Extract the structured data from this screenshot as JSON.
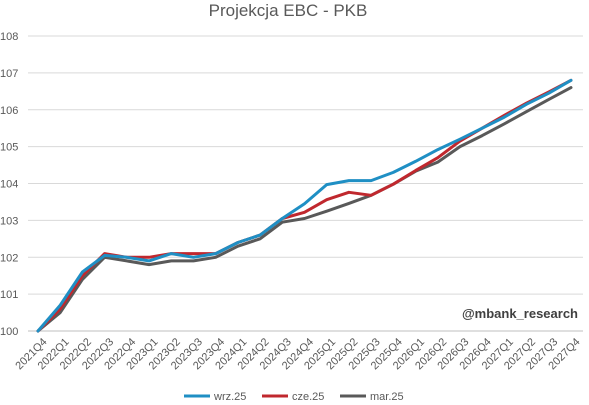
{
  "chart_data": {
    "type": "line",
    "title": "Projekcja EBC - PKB",
    "watermark": "@mbank_research",
    "ylim": [
      100,
      108
    ],
    "yticks": [
      100,
      101,
      102,
      103,
      104,
      105,
      106,
      107,
      108
    ],
    "grid": true,
    "legend_position": "bottom",
    "categories": [
      "2021Q4",
      "2022Q1",
      "2022Q2",
      "2022Q3",
      "2022Q4",
      "2023Q1",
      "2023Q2",
      "2023Q3",
      "2023Q4",
      "2024Q1",
      "2024Q2",
      "2024Q3",
      "2024Q4",
      "2025Q1",
      "2025Q2",
      "2025Q3",
      "2025Q4",
      "2026Q1",
      "2026Q2",
      "2026Q3",
      "2026Q4",
      "2027Q1",
      "2027Q2",
      "2027Q3",
      "2027Q4"
    ],
    "series": [
      {
        "name": "wrz.25",
        "color": "#1f8fc4",
        "values": [
          100.0,
          100.7,
          101.6,
          102.05,
          102.0,
          101.9,
          102.1,
          102.0,
          102.1,
          102.4,
          102.6,
          103.05,
          103.45,
          103.97,
          104.08,
          104.08,
          104.3,
          104.6,
          104.92,
          105.2,
          105.5,
          105.8,
          106.15,
          106.45,
          106.8
        ]
      },
      {
        "name": "cze.25",
        "color": "#c0282e",
        "values": [
          100.0,
          100.6,
          101.5,
          102.1,
          102.0,
          102.0,
          102.1,
          102.1,
          102.1,
          102.4,
          102.6,
          103.05,
          103.22,
          103.56,
          103.76,
          103.68,
          103.98,
          104.35,
          104.7,
          105.15,
          105.5,
          105.85,
          106.18,
          106.48,
          106.8
        ]
      },
      {
        "name": "mar.25",
        "color": "#595959",
        "values": [
          100.0,
          100.5,
          101.4,
          102.0,
          101.9,
          101.8,
          101.9,
          101.9,
          102.0,
          102.3,
          102.5,
          102.95,
          103.05,
          103.25,
          103.46,
          103.68,
          103.98,
          104.33,
          104.58,
          105.0,
          105.3,
          105.62,
          105.95,
          106.28,
          106.6
        ]
      }
    ]
  }
}
